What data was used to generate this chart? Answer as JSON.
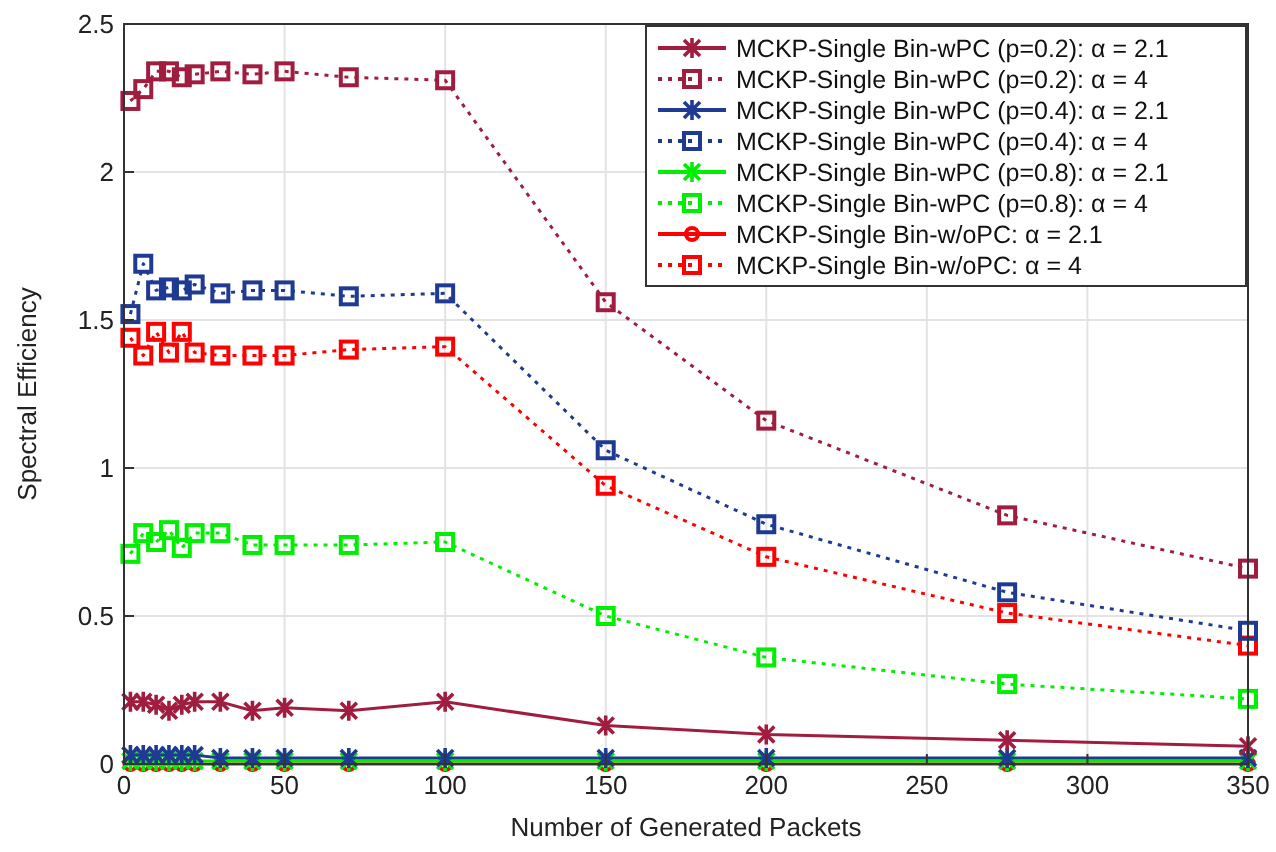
{
  "chart_data": {
    "type": "line",
    "xlabel": "Number of Generated Packets",
    "ylabel": "Spectral Efficiency",
    "x": [
      2,
      6,
      10,
      14,
      18,
      22,
      30,
      40,
      50,
      70,
      100,
      150,
      200,
      275,
      350
    ],
    "xlim": [
      0,
      350
    ],
    "xticks": [
      0,
      50,
      100,
      150,
      200,
      250,
      300,
      350
    ],
    "ylim": [
      0,
      2.5
    ],
    "yticks": [
      0,
      0.5,
      1,
      1.5,
      2,
      2.5
    ],
    "grid": true,
    "legend": "top right",
    "series": [
      {
        "name": "MCKP-Single Bin-wPC (p=0.2): α = 2.1",
        "color": "#a11d3f",
        "marker": "cross",
        "line_style": "solid",
        "values": [
          0.21,
          0.21,
          0.2,
          0.18,
          0.2,
          0.21,
          0.21,
          0.18,
          0.19,
          0.18,
          0.21,
          0.13,
          0.1,
          0.08,
          0.06
        ]
      },
      {
        "name": "MCKP-Single Bin-wPC (p=0.2): α = 4",
        "color": "#a11d3f",
        "marker": "square",
        "line_style": "dotted",
        "values": [
          2.24,
          2.28,
          2.34,
          2.34,
          2.32,
          2.33,
          2.34,
          2.33,
          2.34,
          2.32,
          2.31,
          1.56,
          1.16,
          0.84,
          0.66
        ]
      },
      {
        "name": "MCKP-Single Bin-wPC (p=0.4): α = 2.1",
        "color": "#1f3a93",
        "marker": "cross",
        "line_style": "solid",
        "values": [
          0.03,
          0.03,
          0.03,
          0.03,
          0.03,
          0.03,
          0.02,
          0.02,
          0.02,
          0.02,
          0.02,
          0.02,
          0.02,
          0.02,
          0.02
        ]
      },
      {
        "name": "MCKP-Single Bin-wPC (p=0.4): α = 4",
        "color": "#1f3a93",
        "marker": "square",
        "line_style": "dotted",
        "values": [
          1.52,
          1.69,
          1.6,
          1.61,
          1.6,
          1.62,
          1.59,
          1.6,
          1.6,
          1.58,
          1.59,
          1.06,
          0.81,
          0.58,
          0.45
        ]
      },
      {
        "name": "MCKP-Single Bin-wPC (p=0.8): α = 2.1",
        "color": "#00ee00",
        "marker": "cross",
        "line_style": "solid",
        "values": [
          0.01,
          0.01,
          0.01,
          0.01,
          0.01,
          0.01,
          0.01,
          0.01,
          0.01,
          0.01,
          0.01,
          0.01,
          0.01,
          0.01,
          0.01
        ]
      },
      {
        "name": "MCKP-Single Bin-wPC (p=0.8): α = 4",
        "color": "#00ee00",
        "marker": "square",
        "line_style": "dotted",
        "values": [
          0.71,
          0.78,
          0.75,
          0.79,
          0.73,
          0.78,
          0.78,
          0.74,
          0.74,
          0.74,
          0.75,
          0.5,
          0.36,
          0.27,
          0.22
        ]
      },
      {
        "name": "MCKP-Single Bin-w/oPC: α = 2.1",
        "color": "#ff0000",
        "marker": "circle",
        "line_style": "solid",
        "values": [
          0,
          0,
          0,
          0,
          0,
          0,
          0,
          0,
          0,
          0,
          0,
          0,
          0,
          0,
          0
        ]
      },
      {
        "name": "MCKP-Single Bin-w/oPC: α = 4",
        "color": "#ff0000",
        "marker": "square",
        "line_style": "dotted",
        "values": [
          1.44,
          1.38,
          1.46,
          1.39,
          1.46,
          1.39,
          1.38,
          1.38,
          1.38,
          1.4,
          1.41,
          0.94,
          0.7,
          0.51,
          0.4
        ]
      }
    ]
  }
}
